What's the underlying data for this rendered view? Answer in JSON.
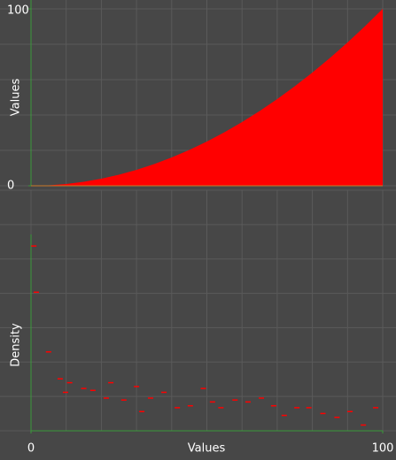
{
  "chart_data": [
    {
      "type": "area",
      "ylabel": "Values",
      "x": [
        0,
        5,
        10,
        15,
        20,
        25,
        30,
        35,
        40,
        45,
        50,
        55,
        60,
        65,
        70,
        75,
        80,
        85,
        90,
        95,
        100
      ],
      "values": [
        0,
        0.25,
        1,
        2.25,
        4,
        6.25,
        9,
        12.25,
        16,
        20.25,
        25,
        30.25,
        36,
        42.25,
        49,
        56.25,
        64,
        72.25,
        81,
        90.25,
        100
      ],
      "color": "#ff0000",
      "xlim": [
        0,
        100
      ],
      "ylim": [
        0,
        100
      ],
      "yticks": [
        0,
        100
      ],
      "grid": true
    },
    {
      "type": "scatter",
      "xlabel": "Values",
      "ylabel": "Density",
      "x": [
        0.8,
        1.5,
        5,
        8.3,
        9.8,
        11,
        15,
        17.6,
        22.7,
        21.4,
        26.4,
        30,
        31.5,
        34,
        37.8,
        41.6,
        45.3,
        49,
        51.6,
        54,
        58,
        61.7,
        65.5,
        69,
        72,
        75.6,
        79,
        83,
        87,
        90.7,
        94.5,
        98
      ],
      "values": [
        0.96,
        0.72,
        0.41,
        0.27,
        0.2,
        0.25,
        0.22,
        0.21,
        0.25,
        0.17,
        0.16,
        0.23,
        0.1,
        0.17,
        0.2,
        0.12,
        0.13,
        0.22,
        0.15,
        0.12,
        0.16,
        0.15,
        0.17,
        0.13,
        0.08,
        0.12,
        0.12,
        0.09,
        0.07,
        0.1,
        0.03,
        0.12
      ],
      "color": "#ff0000",
      "xlim": [
        0,
        100
      ],
      "xticks": [
        0,
        100
      ],
      "ylim": [
        0,
        1.25
      ],
      "grid": true
    }
  ]
}
